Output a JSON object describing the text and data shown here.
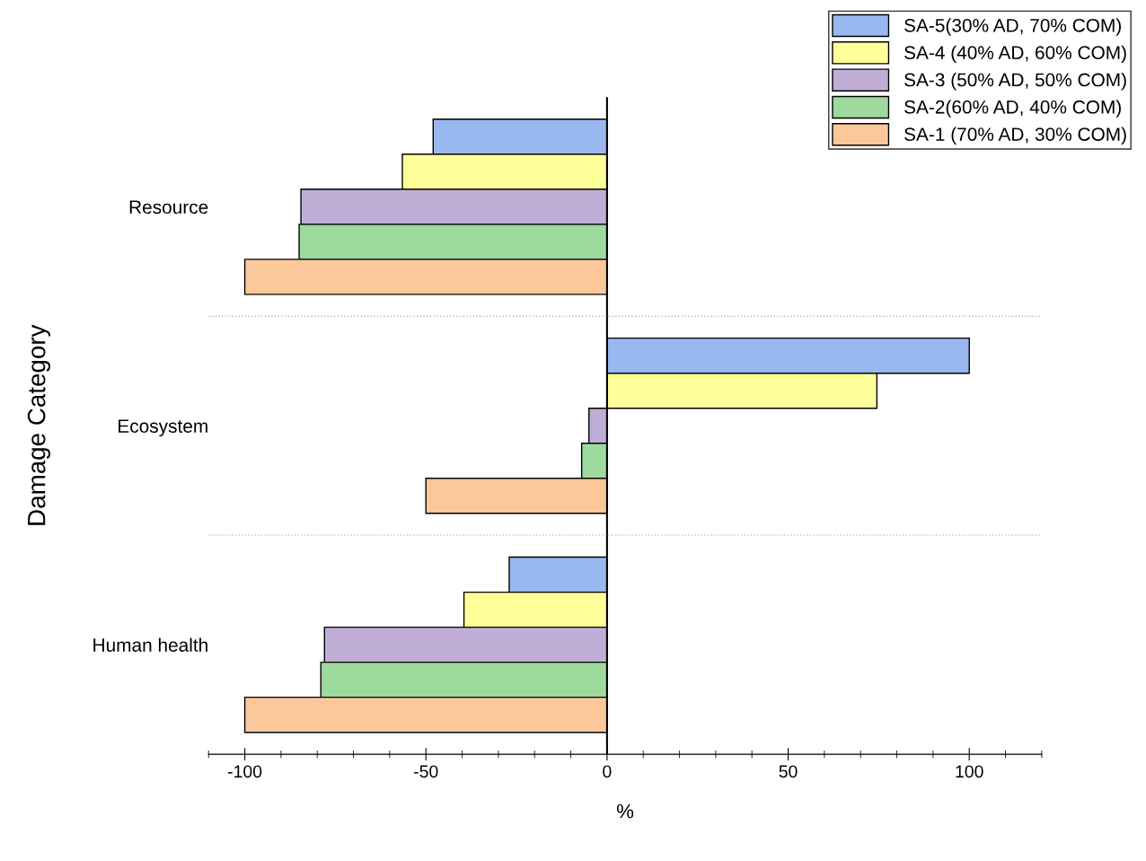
{
  "chart_data": {
    "type": "bar",
    "orientation": "horizontal",
    "xlabel": "%",
    "ylabel": "Damage Category",
    "categories": [
      "Resource",
      "Ecosystem",
      "Human health"
    ],
    "series": [
      {
        "name": "SA-5(30% AD, 70% COM)",
        "color": "#9ab8f0",
        "values": [
          -48,
          100,
          -27
        ]
      },
      {
        "name": "SA-4 (40% AD, 60% COM)",
        "color": "#ffff99",
        "values": [
          -56.5,
          74.5,
          -39.5
        ]
      },
      {
        "name": "SA-3 (50% AD, 50% COM)",
        "color": "#c0aed6",
        "values": [
          -84.5,
          -5,
          -78
        ]
      },
      {
        "name": "SA-2(60% AD, 40% COM)",
        "color": "#9ed99e",
        "values": [
          -85,
          -7,
          -79
        ]
      },
      {
        "name": "SA-1 (70% AD, 30% COM)",
        "color": "#fcc89b",
        "values": [
          -100,
          -50,
          -100
        ]
      }
    ],
    "xlim": [
      -110,
      120
    ],
    "xticks": [
      -100,
      -50,
      0,
      50,
      100
    ],
    "grid": "y",
    "legend": "top right"
  }
}
